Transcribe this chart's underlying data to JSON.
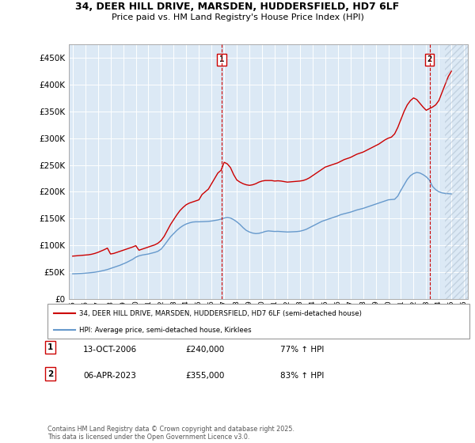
{
  "title_line1": "34, DEER HILL DRIVE, MARSDEN, HUDDERSFIELD, HD7 6LF",
  "title_line2": "Price paid vs. HM Land Registry's House Price Index (HPI)",
  "plot_bg_color": "#dce9f5",
  "ylim": [
    0,
    475000
  ],
  "yticks": [
    0,
    50000,
    100000,
    150000,
    200000,
    250000,
    300000,
    350000,
    400000,
    450000
  ],
  "ytick_labels": [
    "£0",
    "£50K",
    "£100K",
    "£150K",
    "£200K",
    "£250K",
    "£300K",
    "£350K",
    "£400K",
    "£450K"
  ],
  "xlim_start": 1994.7,
  "xlim_end": 2026.3,
  "xticks": [
    1995,
    1996,
    1997,
    1998,
    1999,
    2000,
    2001,
    2002,
    2003,
    2004,
    2005,
    2006,
    2007,
    2008,
    2009,
    2010,
    2011,
    2012,
    2013,
    2014,
    2015,
    2016,
    2017,
    2018,
    2019,
    2020,
    2021,
    2022,
    2023,
    2024,
    2025,
    2026
  ],
  "house_price_color": "#cc0000",
  "hpi_color": "#6699cc",
  "sale1_x": 2006.79,
  "sale1_label": "1",
  "sale2_x": 2023.26,
  "sale2_label": "2",
  "hatch_start": 2024.5,
  "legend_line1": "34, DEER HILL DRIVE, MARSDEN, HUDDERSFIELD, HD7 6LF (semi-detached house)",
  "legend_line2": "HPI: Average price, semi-detached house, Kirklees",
  "annotation1_date": "13-OCT-2006",
  "annotation1_price": "£240,000",
  "annotation1_hpi": "77% ↑ HPI",
  "annotation2_date": "06-APR-2023",
  "annotation2_price": "£355,000",
  "annotation2_hpi": "83% ↑ HPI",
  "footnote": "Contains HM Land Registry data © Crown copyright and database right 2025.\nThis data is licensed under the Open Government Licence v3.0.",
  "hpi_data_x": [
    1995.0,
    1995.25,
    1995.5,
    1995.75,
    1996.0,
    1996.25,
    1996.5,
    1996.75,
    1997.0,
    1997.25,
    1997.5,
    1997.75,
    1998.0,
    1998.25,
    1998.5,
    1998.75,
    1999.0,
    1999.25,
    1999.5,
    1999.75,
    2000.0,
    2000.25,
    2000.5,
    2000.75,
    2001.0,
    2001.25,
    2001.5,
    2001.75,
    2002.0,
    2002.25,
    2002.5,
    2002.75,
    2003.0,
    2003.25,
    2003.5,
    2003.75,
    2004.0,
    2004.25,
    2004.5,
    2004.75,
    2005.0,
    2005.25,
    2005.5,
    2005.75,
    2006.0,
    2006.25,
    2006.5,
    2006.75,
    2007.0,
    2007.25,
    2007.5,
    2007.75,
    2008.0,
    2008.25,
    2008.5,
    2008.75,
    2009.0,
    2009.25,
    2009.5,
    2009.75,
    2010.0,
    2010.25,
    2010.5,
    2010.75,
    2011.0,
    2011.25,
    2011.5,
    2011.75,
    2012.0,
    2012.25,
    2012.5,
    2012.75,
    2013.0,
    2013.25,
    2013.5,
    2013.75,
    2014.0,
    2014.25,
    2014.5,
    2014.75,
    2015.0,
    2015.25,
    2015.5,
    2015.75,
    2016.0,
    2016.25,
    2016.5,
    2016.75,
    2017.0,
    2017.25,
    2017.5,
    2017.75,
    2018.0,
    2018.25,
    2018.5,
    2018.75,
    2019.0,
    2019.25,
    2019.5,
    2019.75,
    2020.0,
    2020.25,
    2020.5,
    2020.75,
    2021.0,
    2021.25,
    2021.5,
    2021.75,
    2022.0,
    2022.25,
    2022.5,
    2022.75,
    2023.0,
    2023.25,
    2023.5,
    2023.75,
    2024.0,
    2024.25,
    2024.5,
    2024.75,
    2025.0
  ],
  "hpi_data_y": [
    47000,
    47200,
    47500,
    47800,
    48200,
    48700,
    49300,
    50000,
    51000,
    52200,
    53500,
    55000,
    57000,
    59000,
    61000,
    63000,
    65500,
    68000,
    71000,
    74000,
    78000,
    80500,
    82000,
    83000,
    84000,
    85500,
    87000,
    89000,
    93000,
    100000,
    108000,
    116000,
    122000,
    128000,
    133000,
    137000,
    140000,
    142000,
    143500,
    144000,
    144000,
    144200,
    144500,
    144800,
    145500,
    146500,
    147500,
    149000,
    151000,
    152000,
    151000,
    148000,
    144000,
    139000,
    133000,
    128000,
    125000,
    123000,
    122000,
    122500,
    124000,
    126000,
    127000,
    126500,
    126000,
    126200,
    125800,
    125400,
    125000,
    125200,
    125500,
    125800,
    126500,
    128000,
    130000,
    133000,
    136000,
    139000,
    142000,
    145000,
    147000,
    149000,
    151000,
    153000,
    155000,
    157500,
    159000,
    160500,
    162000,
    164000,
    166000,
    167500,
    169000,
    171000,
    173000,
    175000,
    177000,
    179000,
    181000,
    183000,
    185000,
    185500,
    186000,
    192000,
    203000,
    213000,
    223000,
    230000,
    234000,
    236000,
    235000,
    232000,
    228000,
    222000,
    210000,
    204000,
    200000,
    198000,
    197000,
    196500,
    196000
  ],
  "property_data_x": [
    1995.0,
    1995.25,
    1995.5,
    1995.75,
    1996.0,
    1996.25,
    1996.5,
    1996.75,
    1997.0,
    1997.25,
    1997.5,
    1997.75,
    1998.0,
    1998.25,
    1998.5,
    1998.75,
    1999.0,
    1999.25,
    1999.5,
    1999.75,
    2000.0,
    2000.25,
    2000.5,
    2000.75,
    2001.0,
    2001.25,
    2001.5,
    2001.75,
    2002.0,
    2002.25,
    2002.5,
    2002.75,
    2003.0,
    2003.25,
    2003.5,
    2003.75,
    2004.0,
    2004.25,
    2004.5,
    2004.75,
    2005.0,
    2005.25,
    2005.5,
    2005.75,
    2006.0,
    2006.25,
    2006.5,
    2006.75,
    2007.0,
    2007.25,
    2007.5,
    2007.75,
    2008.0,
    2008.25,
    2008.5,
    2008.75,
    2009.0,
    2009.25,
    2009.5,
    2009.75,
    2010.0,
    2010.25,
    2010.5,
    2010.75,
    2011.0,
    2011.25,
    2011.5,
    2011.75,
    2012.0,
    2012.25,
    2012.5,
    2012.75,
    2013.0,
    2013.25,
    2013.5,
    2013.75,
    2014.0,
    2014.25,
    2014.5,
    2014.75,
    2015.0,
    2015.25,
    2015.5,
    2015.75,
    2016.0,
    2016.25,
    2016.5,
    2016.75,
    2017.0,
    2017.25,
    2017.5,
    2017.75,
    2018.0,
    2018.25,
    2018.5,
    2018.75,
    2019.0,
    2019.25,
    2019.5,
    2019.75,
    2020.0,
    2020.25,
    2020.5,
    2020.75,
    2021.0,
    2021.25,
    2021.5,
    2021.75,
    2022.0,
    2022.25,
    2022.5,
    2022.75,
    2023.0,
    2023.25,
    2023.5,
    2023.75,
    2024.0,
    2024.25,
    2024.5,
    2024.75,
    2025.0
  ],
  "property_data_y": [
    80000,
    80500,
    81000,
    81500,
    82000,
    82500,
    83500,
    85000,
    87000,
    89500,
    92000,
    95000,
    84000,
    85000,
    87000,
    89000,
    91000,
    93000,
    95000,
    97000,
    99500,
    91000,
    93000,
    95000,
    97000,
    99000,
    101000,
    104000,
    109000,
    117000,
    128000,
    139000,
    148000,
    157000,
    165000,
    171000,
    176000,
    179000,
    181000,
    183000,
    185000,
    195000,
    200000,
    205000,
    215000,
    225000,
    235000,
    240000,
    255000,
    252000,
    245000,
    232000,
    222000,
    218000,
    215000,
    213000,
    212000,
    213000,
    215000,
    218000,
    220000,
    221000,
    221000,
    221000,
    220000,
    220500,
    220000,
    219000,
    218000,
    218500,
    219000,
    219500,
    220000,
    221000,
    223000,
    226000,
    230000,
    234000,
    238000,
    242000,
    246000,
    248000,
    250000,
    252000,
    254000,
    257000,
    260000,
    262000,
    264000,
    267000,
    270000,
    272000,
    274000,
    277000,
    280000,
    283000,
    286000,
    289000,
    293000,
    297000,
    300000,
    302000,
    308000,
    320000,
    335000,
    350000,
    362000,
    370000,
    375000,
    372000,
    365000,
    358000,
    352000,
    355000,
    358000,
    362000,
    370000,
    385000,
    400000,
    415000,
    425000
  ]
}
